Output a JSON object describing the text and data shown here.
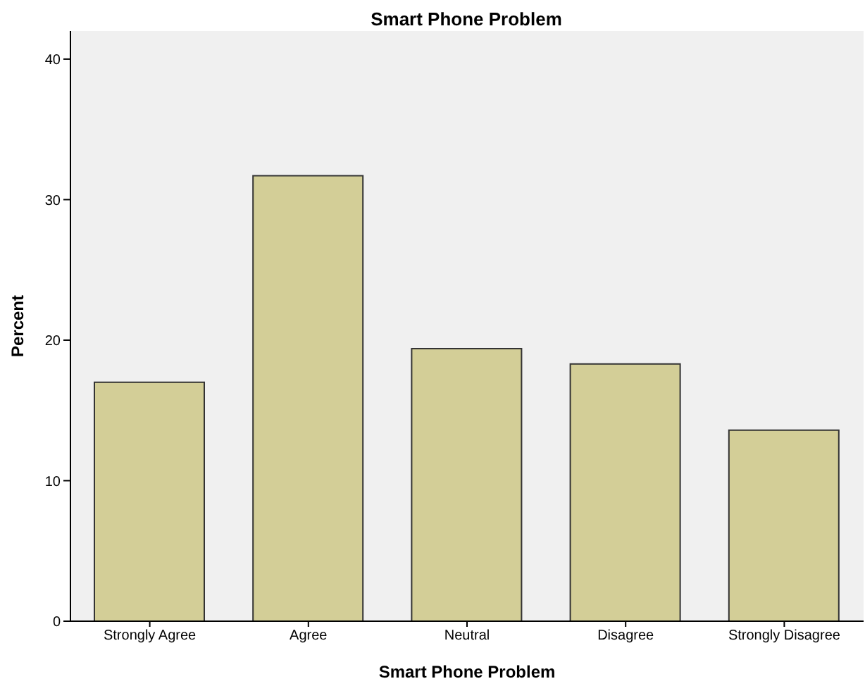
{
  "chart_data": {
    "type": "bar",
    "title": "Smart Phone Problem",
    "xlabel": "Smart Phone Problem",
    "ylabel": "Percent",
    "categories": [
      "Strongly Agree",
      "Agree",
      "Neutral",
      "Disagree",
      "Strongly Disagree"
    ],
    "values": [
      17.0,
      31.7,
      19.4,
      18.3,
      13.6
    ],
    "color": "#d3ce97",
    "ylim": [
      0,
      42
    ],
    "yticks": [
      0,
      10,
      20,
      30,
      40
    ],
    "grid": false
  }
}
